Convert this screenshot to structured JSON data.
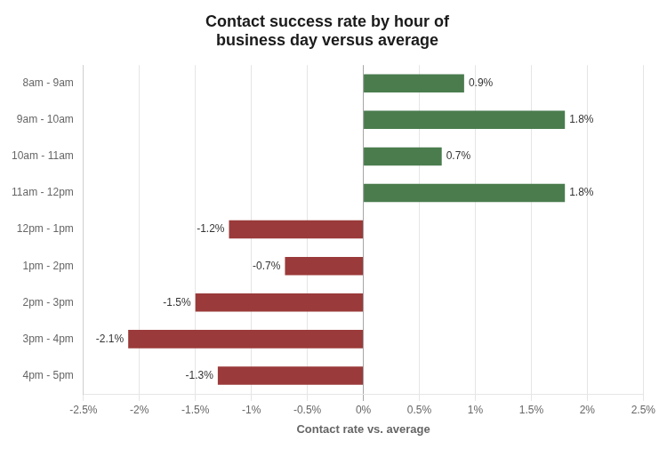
{
  "chart_data": {
    "type": "bar",
    "orientation": "horizontal",
    "title": "Contact success rate by hour of\nbusiness day versus average",
    "categories": [
      "8am - 9am",
      "9am - 10am",
      "10am - 11am",
      "11am - 12pm",
      "12pm - 1pm",
      "1pm - 2pm",
      "2pm - 3pm",
      "3pm - 4pm",
      "4pm - 5pm"
    ],
    "values": [
      0.9,
      1.8,
      0.7,
      1.8,
      -1.2,
      -0.7,
      -1.5,
      -2.1,
      -1.3
    ],
    "value_labels": [
      "0.9%",
      "1.8%",
      "0.7%",
      "1.8%",
      "-1.2%",
      "-0.7%",
      "-1.5%",
      "-2.1%",
      "-1.3%"
    ],
    "colors": [
      "#4a7c4e",
      "#4a7c4e",
      "#4a7c4e",
      "#4a7c4e",
      "#9b3a3a",
      "#9b3a3a",
      "#9b3a3a",
      "#9b3a3a",
      "#9b3a3a"
    ],
    "xlabel": "Contact rate vs. average",
    "xlim": [
      -2.5,
      2.5
    ],
    "xticks": [
      {
        "value": -2.5,
        "label": "-2.5%"
      },
      {
        "value": -2.0,
        "label": "-2%"
      },
      {
        "value": -1.5,
        "label": "-1.5%"
      },
      {
        "value": -1.0,
        "label": "-1%"
      },
      {
        "value": -0.5,
        "label": "-0.5%"
      },
      {
        "value": 0.0,
        "label": "0%"
      },
      {
        "value": 0.5,
        "label": "0.5%"
      },
      {
        "value": 1.0,
        "label": "1%"
      },
      {
        "value": 1.5,
        "label": "1.5%"
      },
      {
        "value": 2.0,
        "label": "2%"
      },
      {
        "value": 2.5,
        "label": "2.5%"
      }
    ],
    "grid": true,
    "data_labels": true
  }
}
